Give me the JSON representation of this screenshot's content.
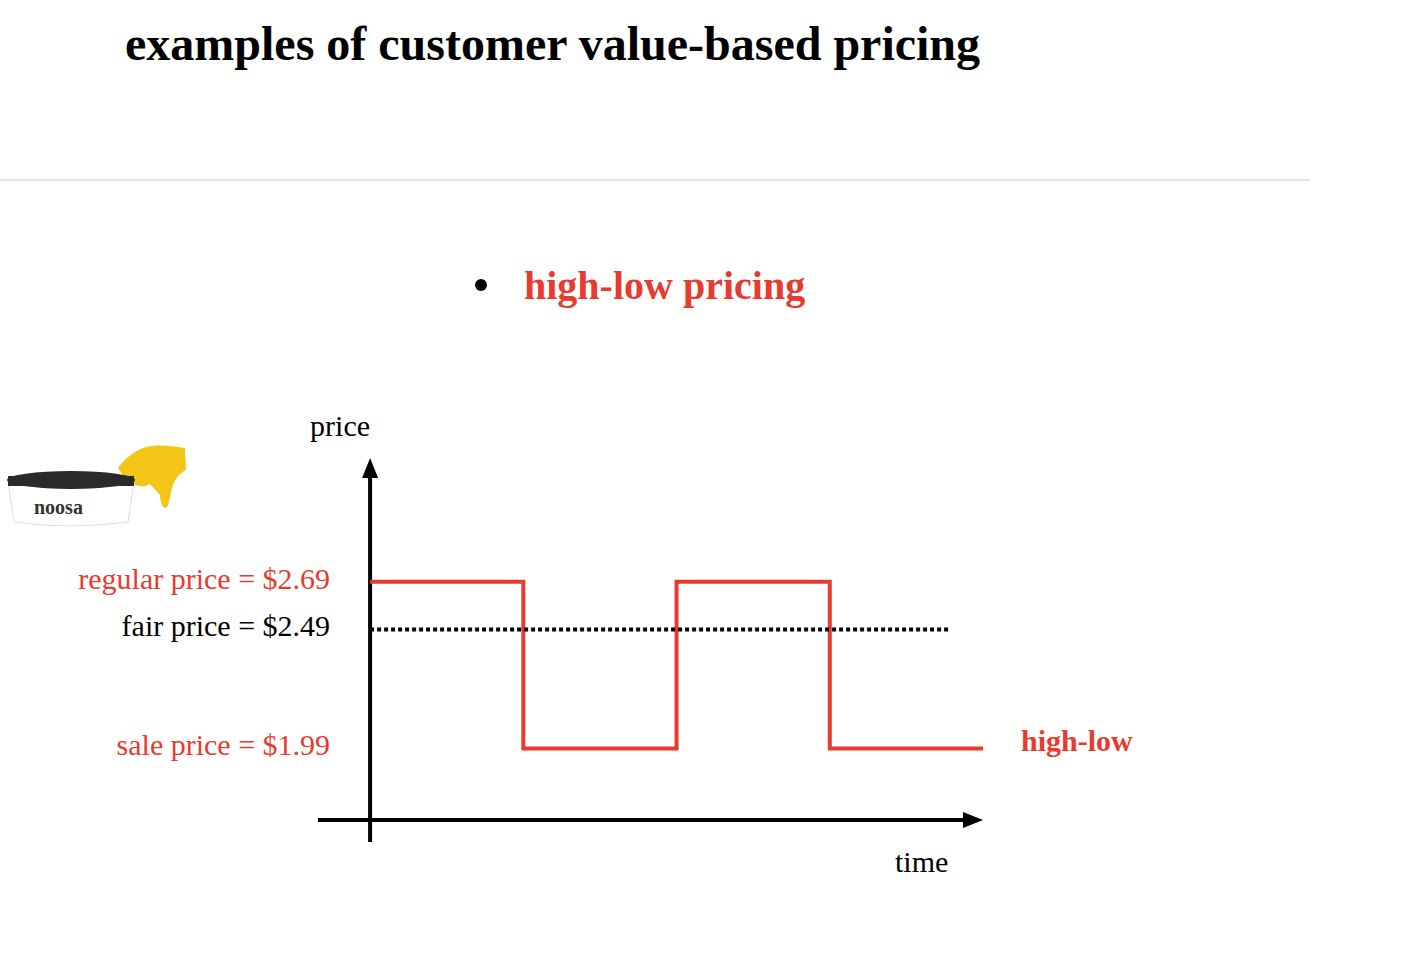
{
  "chart_data": {
    "type": "line",
    "title": "examples of customer value-based pricing",
    "subtitle": "high-low pricing",
    "x_label": "time",
    "y_label": "price",
    "annotations": [
      "noosa"
    ],
    "xlim": [
      -0.34,
      4.0
    ],
    "ylim": [
      1.69,
      3.21
    ],
    "tick_labels": "y",
    "yticks": [
      {
        "value": 2.69,
        "label": "regular price = $2.69"
      },
      {
        "value": 2.49,
        "label": "fair price = $2.49"
      },
      {
        "value": 1.99,
        "label": "sale price = $1.99"
      }
    ],
    "series": [
      {
        "name": "high-low",
        "color": "#e63b2e",
        "line_style": "solid",
        "x": [
          0,
          1,
          1,
          2,
          2,
          3,
          3,
          4
        ],
        "values": [
          2.69,
          2.69,
          1.99,
          1.99,
          2.69,
          2.69,
          1.99,
          1.99
        ]
      },
      {
        "color": "#000000",
        "line_style": "dotted",
        "x": [
          0,
          3.78
        ],
        "values": [
          2.49,
          2.49
        ]
      }
    ]
  }
}
